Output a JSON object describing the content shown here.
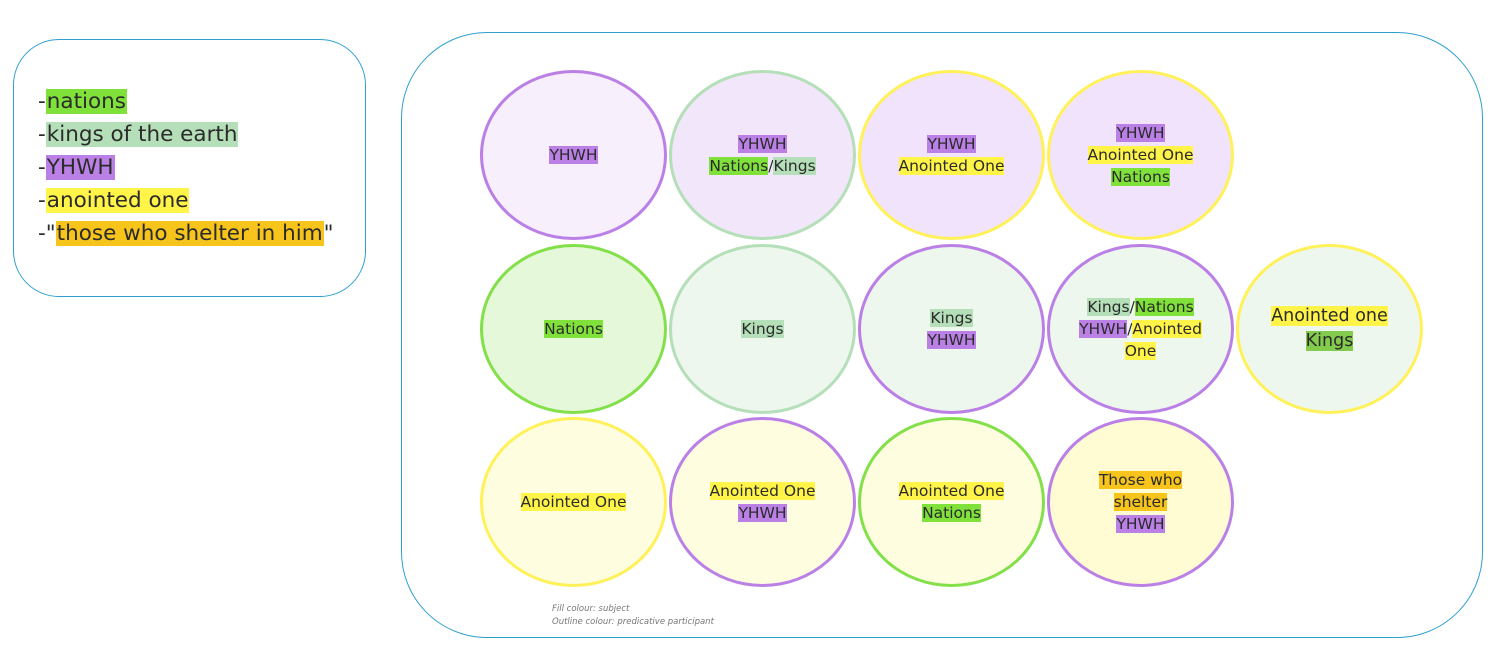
{
  "colors": {
    "nations": "#7fe13a",
    "kings": "#b5dfb8",
    "yhwh": "#bb80e6",
    "anointed": "#fff447",
    "shelter": "#f7c41b",
    "nations_dark": "#83cb4c"
  },
  "legend": [
    {
      "prefix": "-",
      "text": "nations",
      "suffix": "",
      "color": "#7fe13a"
    },
    {
      "prefix": "-",
      "text": "kings of the earth",
      "suffix": "",
      "color": "#b5dfb8"
    },
    {
      "prefix": "-",
      "text": "YHWH",
      "suffix": "",
      "color": "#bb80e6"
    },
    {
      "prefix": "-",
      "text": "anointed one",
      "suffix": "",
      "color": "#fff447"
    },
    {
      "prefix": "-\"",
      "text": "those who shelter in him",
      "suffix": "\"",
      "color": "#f7c41b"
    }
  ],
  "ellipses": [
    {
      "fill": "#f7effb",
      "outline": "#bb80e6",
      "lines": [
        [
          {
            "t": "YHWH",
            "c": "#bb80e6"
          }
        ]
      ]
    },
    {
      "fill": "#f2e6fb",
      "outline": "#b5dfb8",
      "lines": [
        [
          {
            "t": "YHWH",
            "c": "#bb80e6"
          }
        ],
        [
          {
            "t": "Nations",
            "c": "#7fe13a"
          },
          {
            "t": "/",
            "c": ""
          },
          {
            "t": "Kings",
            "c": "#b5dfb8"
          }
        ]
      ]
    },
    {
      "fill": "#f1e3fb",
      "outline": "#fff15a",
      "lines": [
        [
          {
            "t": "YHWH",
            "c": "#bb80e6"
          }
        ],
        [
          {
            "t": "Anointed One",
            "c": "#fff447"
          }
        ]
      ]
    },
    {
      "fill": "#f1e3fb",
      "outline": "#fff15a",
      "lines": [
        [
          {
            "t": "YHWH",
            "c": "#bb80e6"
          }
        ],
        [
          {
            "t": "Anointed One",
            "c": "#fff447"
          }
        ],
        [
          {
            "t": "Nations",
            "c": "#7fe13a"
          }
        ]
      ]
    },
    {
      "fill": "#e6f8da",
      "outline": "#83e04a",
      "lines": [
        [
          {
            "t": "Nations",
            "c": "#7fe13a"
          }
        ]
      ]
    },
    {
      "fill": "#eef7ee",
      "outline": "#b5dfb8",
      "lines": [
        [
          {
            "t": "Kings",
            "c": "#b5dfb8"
          }
        ]
      ]
    },
    {
      "fill": "#eef7ee",
      "outline": "#bb80e6",
      "lines": [
        [
          {
            "t": "Kings",
            "c": "#b5dfb8"
          }
        ],
        [
          {
            "t": "YHWH",
            "c": "#bb80e6"
          }
        ]
      ]
    },
    {
      "fill": "#eef7ee",
      "outline": "#bb80e6",
      "lines": [
        [
          {
            "t": "Kings",
            "c": "#b5dfb8"
          },
          {
            "t": "/",
            "c": ""
          },
          {
            "t": "Nations",
            "c": "#7fe13a"
          }
        ],
        [
          {
            "t": "YHWH",
            "c": "#bb80e6"
          },
          {
            "t": "/",
            "c": ""
          },
          {
            "t": "Anointed",
            "c": "#fff447"
          }
        ],
        [
          {
            "t": "One",
            "c": "#fff447"
          }
        ]
      ]
    },
    {
      "fill": "#eef7ee",
      "outline": "#fff15a",
      "big": true,
      "lines": [
        [
          {
            "t": "Anointed one",
            "c": "#fff447"
          }
        ],
        [
          {
            "t": "Kings",
            "c": "#83cb4c"
          }
        ]
      ]
    },
    {
      "fill": "#fffde0",
      "outline": "#fff15a",
      "lines": [
        [
          {
            "t": "Anointed One",
            "c": "#fff447"
          }
        ]
      ]
    },
    {
      "fill": "#fffde0",
      "outline": "#bb80e6",
      "lines": [
        [
          {
            "t": "Anointed One",
            "c": "#fff447"
          }
        ],
        [
          {
            "t": "YHWH",
            "c": "#bb80e6"
          }
        ]
      ]
    },
    {
      "fill": "#fffde0",
      "outline": "#83e04a",
      "lines": [
        [
          {
            "t": "Anointed One",
            "c": "#fff447"
          }
        ],
        [
          {
            "t": "Nations",
            "c": "#7fe13a"
          }
        ]
      ]
    },
    {
      "fill": "#fffbd2",
      "outline": "#bb80e6",
      "lines": [
        [
          {
            "t": "Those who",
            "c": "#f7c41b"
          }
        ],
        [
          {
            "t": "shelter",
            "c": "#f7c41b"
          }
        ],
        [
          {
            "t": "YHWH",
            "c": "#bb80e6"
          }
        ]
      ]
    }
  ],
  "notes": [
    "Fill colour: subject",
    "Outline colour: predicative participant"
  ]
}
